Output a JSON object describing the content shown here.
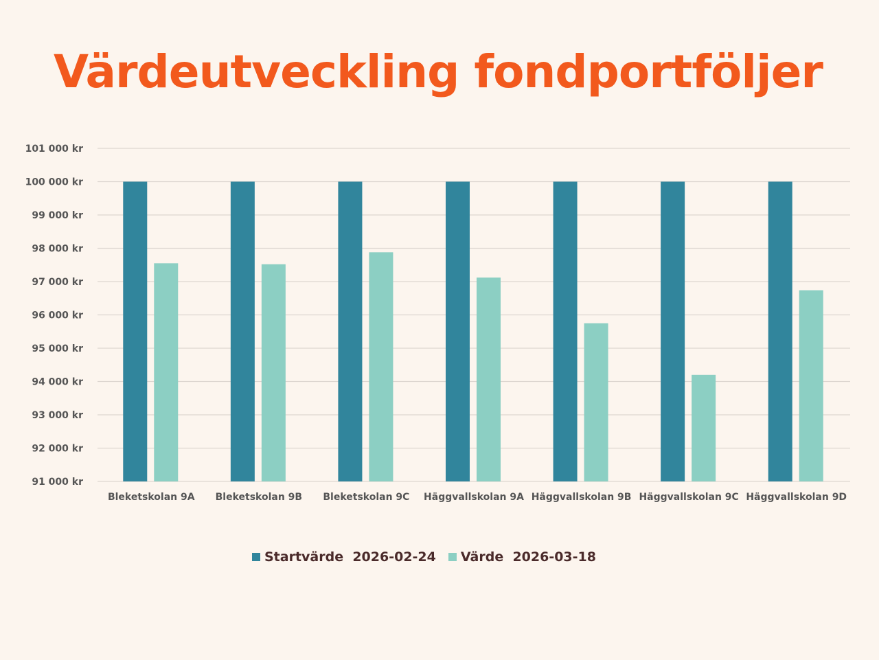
{
  "chart_data": {
    "type": "bar",
    "title": "Värdeutveckling fondportföljer",
    "categories": [
      "Bleketskolan 9A",
      "Bleketskolan 9B",
      "Bleketskolan 9C",
      "Häggvallskolan 9A",
      "Häggvallskolan 9B",
      "Häggvallskolan 9C",
      "Häggvallskolan 9D"
    ],
    "series": [
      {
        "name": "Startvärde  2026-02-24",
        "color": "#31859c",
        "values": [
          100000,
          100000,
          100000,
          100000,
          100000,
          100000,
          100000
        ]
      },
      {
        "name": "Värde  2026-03-18",
        "color": "#8ccfc3",
        "values": [
          97550,
          97520,
          97880,
          97120,
          95750,
          94200,
          96740
        ]
      }
    ],
    "ylim": [
      91000,
      101000
    ],
    "yticks": [
      91000,
      92000,
      93000,
      94000,
      95000,
      96000,
      97000,
      98000,
      99000,
      100000,
      101000
    ],
    "ytick_labels": [
      "91 000 kr",
      "92 000 kr",
      "93 000 kr",
      "94 000 kr",
      "95 000 kr",
      "96 000 kr",
      "97 000 kr",
      "98 000 kr",
      "99 000 kr",
      "100 000 kr",
      "101 000 kr"
    ],
    "grid": true,
    "legend_position": "bottom"
  }
}
